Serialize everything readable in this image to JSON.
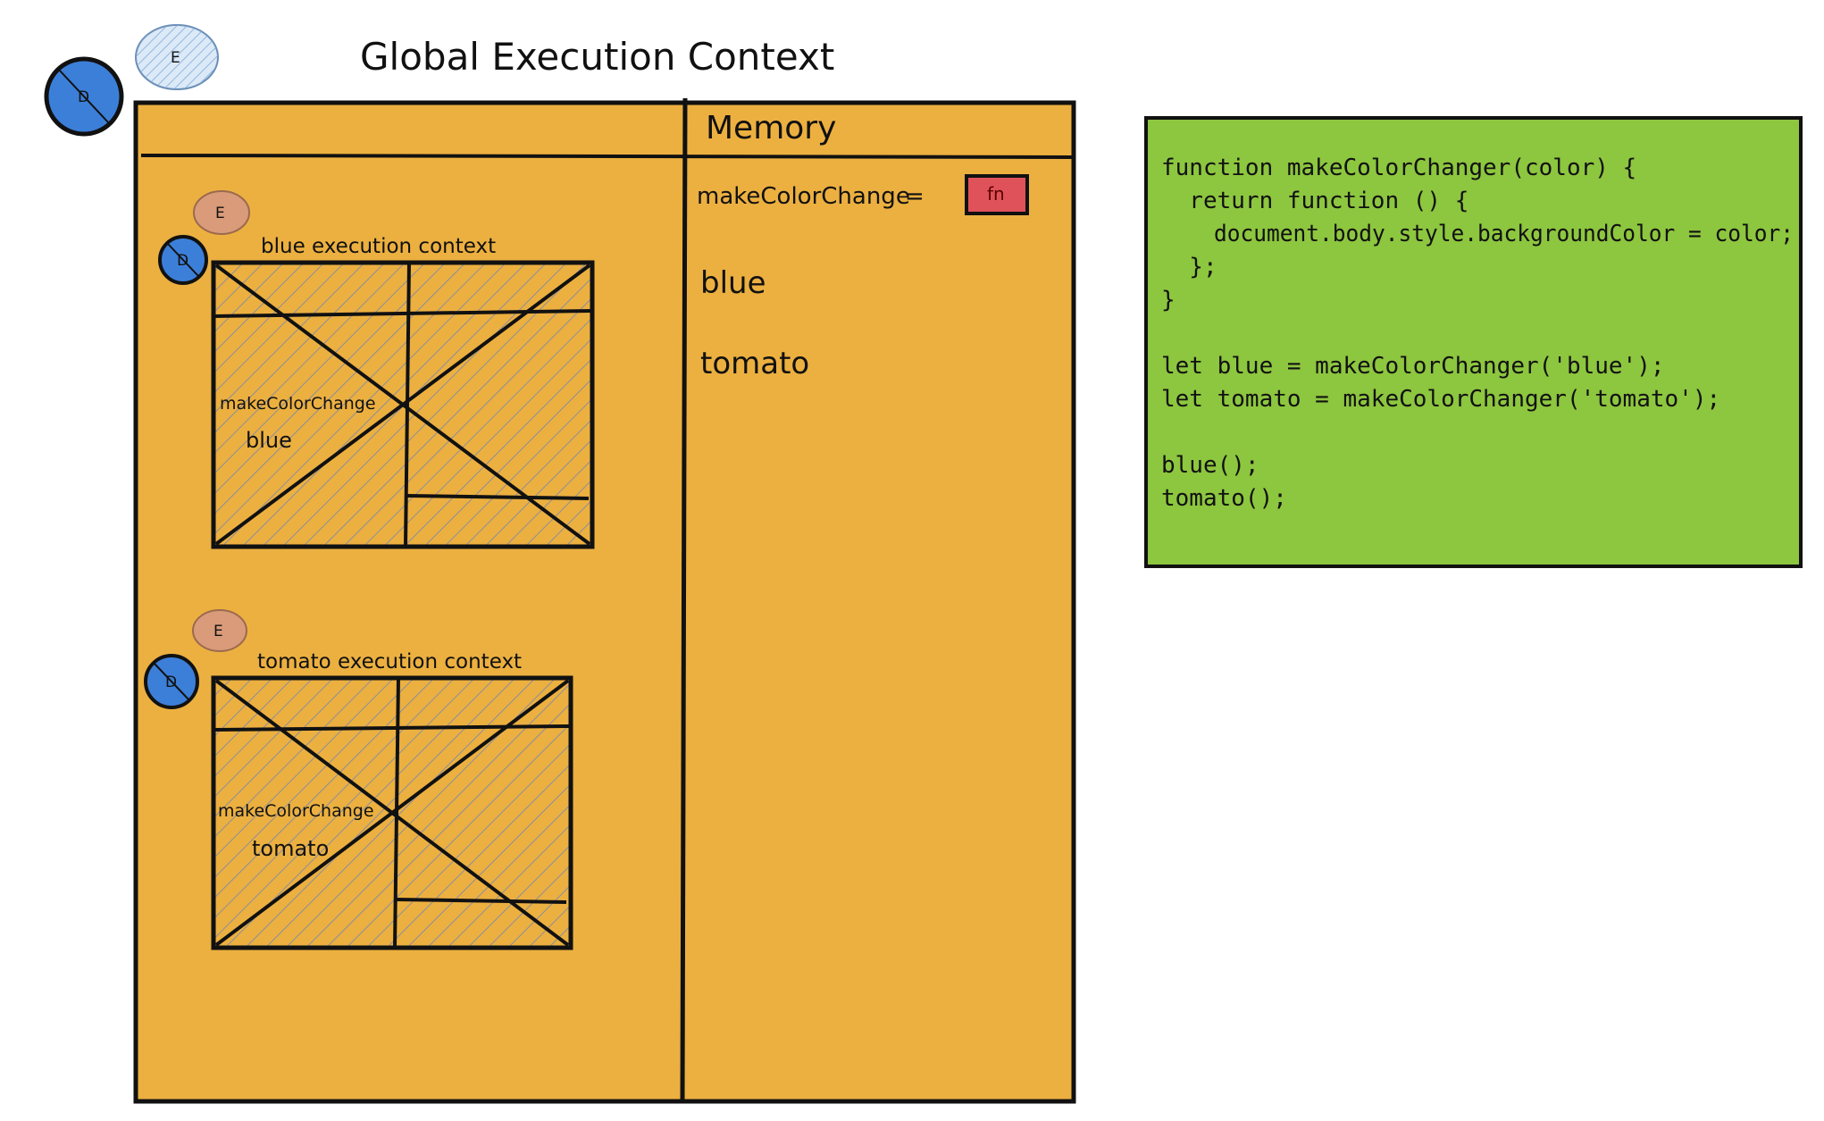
{
  "title": "Global Execution Context",
  "colors": {
    "frame_fill": "#ecb040",
    "code_fill": "#8dc63f",
    "badge_d": "#3c7fd8",
    "badge_e_light": "#dce9f7",
    "badge_e_salmon": "#d99b7a",
    "fn_box": "#e0525a",
    "hatch": "#8b8e9c",
    "stroke": "#111111"
  },
  "global_badges": {
    "d": "D",
    "e": "E"
  },
  "memory": {
    "heading": "Memory",
    "entry_label": "makeColorChange",
    "entry_eq": "=",
    "fn_label": "fn",
    "values": [
      "blue",
      "tomato"
    ]
  },
  "contexts": [
    {
      "title": "blue execution context",
      "badge_d": "D",
      "badge_e": "E",
      "inner_label": "makeColorChange",
      "inner_value": "blue"
    },
    {
      "title": "tomato execution context",
      "badge_d": "D",
      "badge_e": "E",
      "inner_label": "makeColorChange",
      "inner_value": "tomato"
    }
  ],
  "code": {
    "lines": [
      "function makeColorChanger(color) {",
      "  return function () {",
      "    document.body.style.backgroundColor = color;",
      "  };",
      "}",
      "",
      "let blue = makeColorChanger('blue');",
      "let tomato = makeColorChanger('tomato');",
      "",
      "blue();",
      "tomato();"
    ]
  }
}
